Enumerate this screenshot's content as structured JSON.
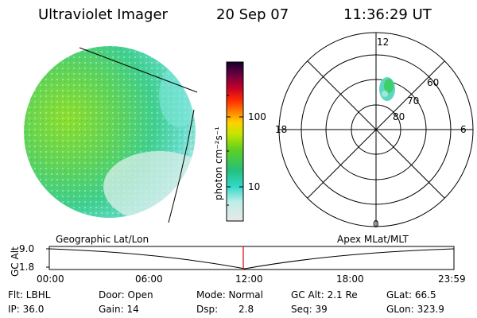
{
  "header": {
    "instrument": "Ultraviolet Imager",
    "date": "20 Sep 07",
    "time": "11:36:29 UT"
  },
  "colorbar": {
    "unit_label": "photon cm⁻²s⁻¹",
    "ticks": [
      "100",
      "10"
    ]
  },
  "polar_plot": {
    "mlt_labels": {
      "top": "12",
      "left": "18",
      "right": "6",
      "bottom": "0"
    },
    "mlat_labels": [
      "60",
      "70",
      "80"
    ]
  },
  "timeline": {
    "y_axis_label": "GC Alt",
    "y_ticks": [
      "9.0",
      "1.8"
    ],
    "left_caption": "Geographic Lat/Lon",
    "right_caption": "Apex MLat/MLT",
    "x_ticks": [
      "00:00",
      "06:00",
      "12:00",
      "18:00",
      "23:59"
    ]
  },
  "info": {
    "flt": "Flt: LBHL",
    "ip": "IP: 36.0",
    "door": "Door: Open",
    "gain": "Gain: 14",
    "mode": "Mode: Normal",
    "dsp_label": "Dsp:",
    "dsp_value": "2.8",
    "gc_alt": "GC Alt: 2.1 Re",
    "seq": "Seq: 39",
    "glat": "GLat: 66.5",
    "glon": "GLon: 323.9"
  }
}
